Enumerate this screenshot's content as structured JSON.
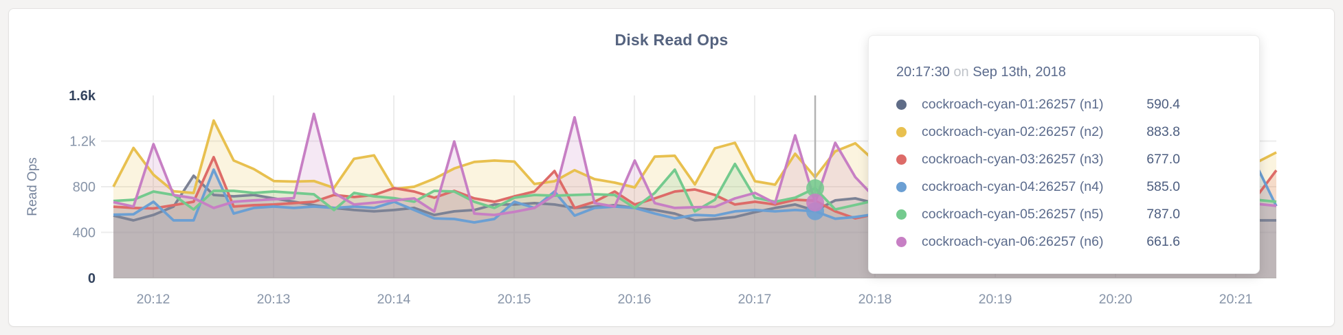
{
  "page": {
    "background": "#f4f3f2",
    "card_background": "#ffffff",
    "grid_color": "#ececec",
    "axis_line_color": "#e0dfde",
    "hover_line_color": "#b3b3b3",
    "tick_color": "#8794a8",
    "tick_extreme_color": "#33435e",
    "axis_title_color": "#76849c",
    "title_color": "#55637f"
  },
  "chart": {
    "title": "Disk Read Ops",
    "y_axis": {
      "label": "Read Ops"
    },
    "x_axis": {
      "labels": [
        "20:12",
        "20:13",
        "20:14",
        "20:15",
        "20:16",
        "20:17",
        "20:18",
        "20:19",
        "20:20",
        "20:21"
      ]
    }
  },
  "tooltip": {
    "time": "20:17:30",
    "conj": "on",
    "date": "Sep 13th, 2018",
    "rows": [
      {
        "name": "cockroach-cyan-01:26257 (n1)",
        "value": "590.4",
        "color": "#5f6c87"
      },
      {
        "name": "cockroach-cyan-02:26257 (n2)",
        "value": "883.8",
        "color": "#e8c04f"
      },
      {
        "name": "cockroach-cyan-03:26257 (n3)",
        "value": "677.0",
        "color": "#dd6b68"
      },
      {
        "name": "cockroach-cyan-04:26257 (n4)",
        "value": "585.0",
        "color": "#6b9fd3"
      },
      {
        "name": "cockroach-cyan-05:26257 (n5)",
        "value": "787.0",
        "color": "#74ca8e"
      },
      {
        "name": "cockroach-cyan-06:26257 (n6)",
        "value": "661.6",
        "color": "#c77fc4"
      }
    ]
  },
  "chart_data": {
    "type": "area",
    "title": "Disk Read Ops",
    "xlabel": "",
    "ylabel": "Read Ops",
    "x_start": "20:11:40",
    "x_step_seconds": 10,
    "x_tick_labels": [
      "20:12",
      "20:13",
      "20:14",
      "20:15",
      "20:16",
      "20:17",
      "20:18",
      "20:19",
      "20:20",
      "20:21"
    ],
    "ylim": [
      0,
      1600
    ],
    "y_tick_labels": [
      "0",
      "400",
      "800",
      "1.2k",
      "1.6k"
    ],
    "y_tick_values": [
      0,
      400,
      800,
      1200,
      1600
    ],
    "grid": true,
    "legend_position": "tooltip",
    "hover": {
      "index": 35,
      "time": "20:17:30",
      "dot_series": [
        "n4",
        "n5",
        "n6"
      ]
    },
    "series": [
      {
        "id": "n1",
        "name": "cockroach-cyan-01:26257 (n1)",
        "color": "#5f6c87",
        "line_color": "#7c8295",
        "values": [
          547,
          505,
          553,
          626,
          896,
          728,
          716,
          728,
          698,
          668,
          638,
          614,
          596,
          584,
          596,
          614,
          553,
          584,
          596,
          644,
          644,
          656,
          644,
          614,
          626,
          638,
          614,
          596,
          565,
          505,
          517,
          535,
          577,
          614,
          644,
          590.4,
          680,
          698,
          655,
          610,
          585,
          560,
          595,
          625,
          605,
          575,
          555,
          585,
          615,
          595,
          570,
          550,
          575,
          605,
          585,
          560,
          535,
          505,
          505
        ]
      },
      {
        "id": "n2",
        "name": "cockroach-cyan-02:26257 (n2)",
        "color": "#e8c04f",
        "line_color": "#e8c04f",
        "values": [
          800,
          1140,
          905,
          760,
          745,
          1380,
          1030,
          955,
          850,
          845,
          850,
          790,
          1045,
          1075,
          780,
          800,
          870,
          960,
          1017,
          1029,
          1020,
          824,
          848,
          945,
          866,
          836,
          794,
          1064,
          1071,
          820,
          1137,
          1185,
          848,
          818,
          1089,
          883.8,
          1110,
          1180,
          1020,
          920,
          980,
          1060,
          960,
          880,
          940,
          1030,
          970,
          900,
          860,
          930,
          1010,
          950,
          880,
          840,
          900,
          980,
          940,
          1011,
          1101
        ]
      },
      {
        "id": "n3",
        "name": "cockroach-cyan-03:26257 (n3)",
        "color": "#dd6b68",
        "line_color": "#dd6b68",
        "values": [
          625,
          614,
          610,
          638,
          668,
          1059,
          626,
          638,
          644,
          656,
          668,
          728,
          710,
          728,
          788,
          758,
          704,
          764,
          698,
          668,
          716,
          758,
          938,
          614,
          668,
          758,
          644,
          698,
          758,
          776,
          728,
          644,
          668,
          644,
          686,
          677,
          584,
          523,
          560,
          600,
          640,
          680,
          650,
          620,
          660,
          700,
          670,
          640,
          620,
          650,
          690,
          660,
          630,
          610,
          640,
          670,
          650,
          710,
          944
        ]
      },
      {
        "id": "n4",
        "name": "cockroach-cyan-04:26257 (n4)",
        "color": "#6b9fd3",
        "line_color": "#6b9fd3",
        "values": [
          555,
          559,
          668,
          505,
          505,
          950,
          565,
          614,
          626,
          614,
          626,
          614,
          626,
          614,
          668,
          596,
          523,
          517,
          487,
          517,
          668,
          614,
          758,
          547,
          614,
          626,
          614,
          565,
          523,
          553,
          547,
          584,
          596,
          584,
          596,
          585,
          520,
          535,
          560,
          540,
          580,
          610,
          570,
          540,
          560,
          590,
          570,
          550,
          530,
          560,
          590,
          570,
          550,
          530,
          560,
          600,
          700,
          990,
          630
        ]
      },
      {
        "id": "n5",
        "name": "cockroach-cyan-05:26257 (n5)",
        "color": "#74ca8e",
        "line_color": "#74ca8e",
        "values": [
          675,
          686,
          758,
          728,
          601,
          764,
          764,
          746,
          758,
          746,
          734,
          596,
          746,
          716,
          700,
          668,
          764,
          758,
          668,
          614,
          704,
          728,
          722,
          728,
          734,
          728,
          614,
          746,
          950,
          584,
          686,
          1000,
          704,
          668,
          704,
          787,
          601,
          640,
          680,
          700,
          720,
          680,
          650,
          700,
          730,
          710,
          680,
          660,
          700,
          720,
          690,
          670,
          700,
          720,
          700,
          680,
          660,
          686,
          668
        ]
      },
      {
        "id": "n6",
        "name": "cockroach-cyan-06:26257 (n6)",
        "color": "#c77fc4",
        "line_color": "#c77fc4",
        "values": [
          665,
          626,
          1173,
          728,
          700,
          614,
          668,
          680,
          690,
          700,
          1438,
          746,
          644,
          660,
          680,
          698,
          583,
          1197,
          565,
          553,
          580,
          614,
          728,
          1408,
          656,
          626,
          1029,
          656,
          614,
          620,
          624,
          698,
          746,
          656,
          1250,
          661.6,
          1185,
          884,
          700,
          650,
          680,
          720,
          690,
          660,
          700,
          730,
          700,
          670,
          640,
          670,
          700,
          680,
          650,
          630,
          660,
          690,
          670,
          650,
          632
        ]
      }
    ]
  }
}
